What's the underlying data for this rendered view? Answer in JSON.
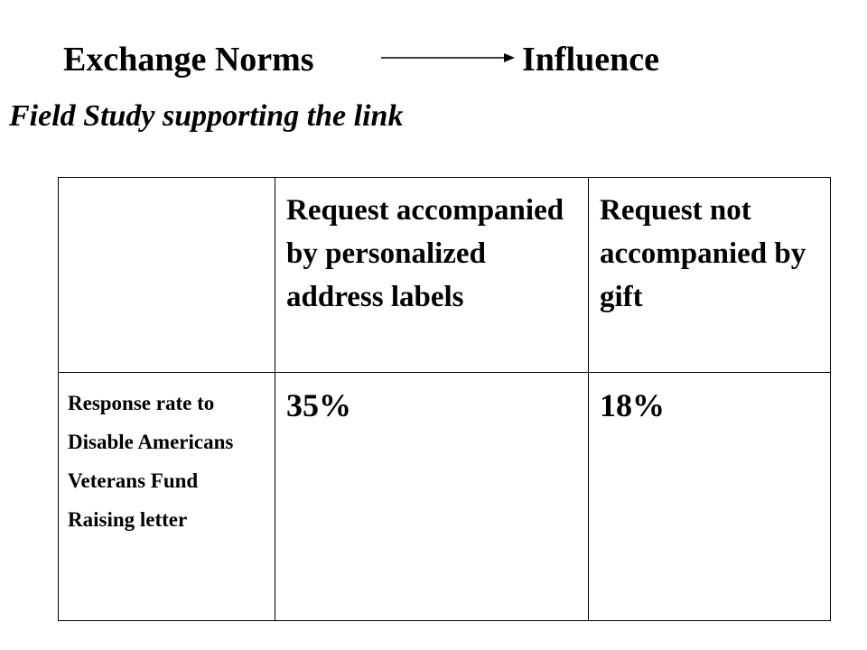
{
  "header": {
    "left_concept": "Exchange Norms",
    "right_concept": "Influence",
    "arrow_icon": "right-arrow-icon"
  },
  "subtitle": "Field Study supporting the link",
  "table": {
    "columns": [
      "",
      "Request accompanied by personalized address labels",
      "Request not accompanied by gift"
    ],
    "rows": [
      {
        "label": "Response rate to Disable Americans Veterans Fund Raising letter",
        "values": [
          "35%",
          "18%"
        ]
      }
    ]
  }
}
